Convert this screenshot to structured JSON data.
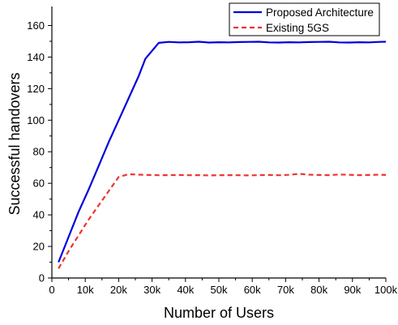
{
  "chart_data": {
    "type": "line",
    "title": "",
    "xlabel": "Number of Users",
    "ylabel": "Successful handovers",
    "xlim": [
      0,
      100000
    ],
    "ylim": [
      0,
      170
    ],
    "x_ticks": [
      0,
      10000,
      20000,
      30000,
      40000,
      50000,
      60000,
      70000,
      80000,
      90000,
      100000
    ],
    "x_tick_labels": [
      "0",
      "10k",
      "20k",
      "30k",
      "40k",
      "50k",
      "60k",
      "70k",
      "80k",
      "90k",
      "100k"
    ],
    "y_ticks": [
      0,
      20,
      40,
      60,
      80,
      100,
      120,
      140,
      160
    ],
    "y_tick_labels": [
      "0",
      "20",
      "40",
      "60",
      "80",
      "100",
      "120",
      "140",
      "160"
    ],
    "grid": false,
    "legend_position": "top-right",
    "series": [
      {
        "name": "Proposed Architecture",
        "color": "#0000dd",
        "style": "solid",
        "x": [
          2000,
          5000,
          8000,
          11000,
          14000,
          17000,
          20000,
          23000,
          26000,
          28000,
          32000,
          35000,
          38000,
          41000,
          44000,
          47000,
          50000,
          53000,
          56000,
          59000,
          62000,
          65000,
          68000,
          71000,
          74000,
          77000,
          80000,
          83000,
          86000,
          89000,
          92000,
          95000,
          98000,
          100000
        ],
        "y": [
          10,
          26,
          42,
          56,
          71,
          86,
          100,
          114,
          128,
          139,
          149,
          149.6,
          149.3,
          149.4,
          149.7,
          149.2,
          149.4,
          149.3,
          149.5,
          149.6,
          149.7,
          149.3,
          149.2,
          149.4,
          149.3,
          149.5,
          149.6,
          149.7,
          149.3,
          149.2,
          149.4,
          149.3,
          149.6,
          149.7
        ]
      },
      {
        "name": "Existing 5GS",
        "color": "#ee3333",
        "style": "dashed",
        "x": [
          2000,
          5000,
          8000,
          11000,
          14000,
          17000,
          20000,
          23000,
          26000,
          29000,
          32000,
          35000,
          38000,
          41000,
          44000,
          47000,
          50000,
          53000,
          56000,
          59000,
          62000,
          65000,
          68000,
          71000,
          74000,
          77000,
          80000,
          83000,
          86000,
          89000,
          92000,
          95000,
          98000,
          100000
        ],
        "y": [
          6,
          17,
          27,
          37,
          46,
          55,
          64,
          65.8,
          65.5,
          65.3,
          65.1,
          65.2,
          65.3,
          65.1,
          65.2,
          65.0,
          65.1,
          65.2,
          65.1,
          65.0,
          65.2,
          65.3,
          65.1,
          65.4,
          66.0,
          65.5,
          65.3,
          65.2,
          65.6,
          65.4,
          65.2,
          65.3,
          65.5,
          65.3
        ]
      }
    ]
  }
}
